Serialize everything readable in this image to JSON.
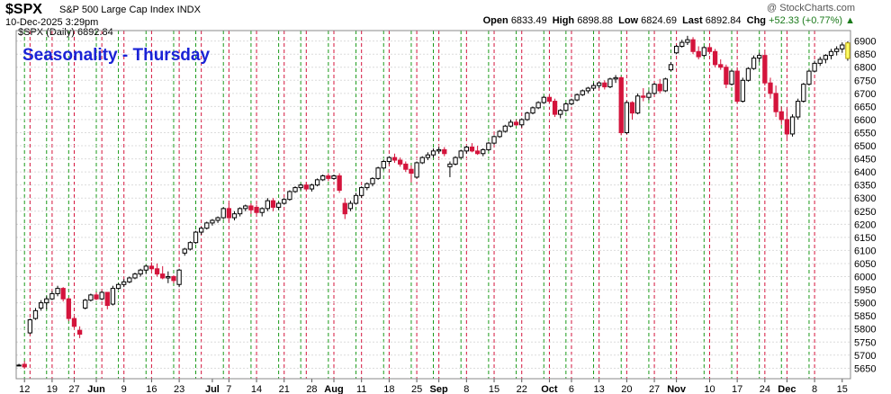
{
  "header": {
    "symbol": "$SPX",
    "name": "S&P 500 Large Cap Index INDX",
    "date": "10-Dec-2025 3:29pm",
    "brand": "@ StockCharts.com",
    "open_label": "Open",
    "open": "6833.49",
    "high_label": "High",
    "high": "6898.88",
    "low_label": "Low",
    "low": "6824.69",
    "last_label": "Last",
    "last": "6892.84",
    "chg_label": "Chg",
    "chg": "+52.33 (+0.77%)"
  },
  "colors": {
    "up": "#ffffff",
    "down": "#d4143c",
    "green_line": "#1a9a1a",
    "red_line": "#d4143c",
    "title": "#1a23d6",
    "highlight": "#ffff66"
  },
  "chart_data": {
    "type": "candlestick",
    "title": "Seasonality - Thursday",
    "inline_label": "$SPX (Daily) 6892.84",
    "y_axis": {
      "side": "right",
      "ylim": [
        5610,
        6940
      ],
      "ticks": [
        5650,
        5700,
        5750,
        5800,
        5850,
        5900,
        5950,
        6000,
        6050,
        6100,
        6150,
        6200,
        6250,
        6300,
        6350,
        6400,
        6450,
        6500,
        6550,
        6600,
        6650,
        6700,
        6750,
        6800,
        6850,
        6900
      ]
    },
    "x_labels": [
      {
        "label": "12",
        "idx": 1
      },
      {
        "label": "19",
        "idx": 6
      },
      {
        "label": "27",
        "idx": 10
      },
      {
        "label": "Jun",
        "idx": 14,
        "bold": true
      },
      {
        "label": "9",
        "idx": 19
      },
      {
        "label": "16",
        "idx": 24
      },
      {
        "label": "23",
        "idx": 29
      },
      {
        "label": "Jul",
        "idx": 35,
        "bold": true
      },
      {
        "label": "7",
        "idx": 38
      },
      {
        "label": "14",
        "idx": 43
      },
      {
        "label": "21",
        "idx": 48
      },
      {
        "label": "28",
        "idx": 53
      },
      {
        "label": "Aug",
        "idx": 57,
        "bold": true
      },
      {
        "label": "11",
        "idx": 62
      },
      {
        "label": "18",
        "idx": 67
      },
      {
        "label": "25",
        "idx": 72
      },
      {
        "label": "Sep",
        "idx": 76,
        "bold": true
      },
      {
        "label": "8",
        "idx": 81
      },
      {
        "label": "15",
        "idx": 86
      },
      {
        "label": "22",
        "idx": 91
      },
      {
        "label": "Oct",
        "idx": 96,
        "bold": true
      },
      {
        "label": "6",
        "idx": 100
      },
      {
        "label": "13",
        "idx": 105
      },
      {
        "label": "20",
        "idx": 110
      },
      {
        "label": "27",
        "idx": 115
      },
      {
        "label": "Nov",
        "idx": 119,
        "bold": true
      },
      {
        "label": "10",
        "idx": 125
      },
      {
        "label": "17",
        "idx": 130
      },
      {
        "label": "24",
        "idx": 135
      },
      {
        "label": "Dec",
        "idx": 139,
        "bold": true
      },
      {
        "label": "8",
        "idx": 144
      },
      {
        "label": "15",
        "idx": 149
      }
    ],
    "x_count": 151,
    "green_lines": [
      1,
      5,
      9,
      14,
      18,
      23,
      28,
      32,
      37,
      42,
      47,
      51,
      56,
      61,
      66,
      71,
      75,
      80,
      85,
      90,
      95,
      99,
      104,
      109,
      114,
      118,
      124,
      129,
      134,
      138,
      143
    ],
    "red_lines": [
      2,
      6,
      10,
      15,
      19,
      24,
      29,
      33,
      38,
      43,
      48,
      52,
      57,
      62,
      67,
      72,
      76,
      81,
      86,
      91,
      96,
      100,
      105,
      110,
      115,
      119,
      125,
      130,
      135,
      139,
      144
    ],
    "candles": [
      [
        0,
        5662,
        5667,
        5658,
        5662
      ],
      [
        1,
        5665,
        5677,
        5648,
        5655
      ],
      [
        2,
        5785,
        5840,
        5780,
        5835
      ],
      [
        3,
        5840,
        5880,
        5835,
        5870
      ],
      [
        4,
        5880,
        5910,
        5870,
        5900
      ],
      [
        5,
        5900,
        5925,
        5875,
        5915
      ],
      [
        6,
        5915,
        5945,
        5910,
        5935
      ],
      [
        7,
        5935,
        5965,
        5925,
        5955
      ],
      [
        8,
        5955,
        5960,
        5905,
        5915
      ],
      [
        9,
        5915,
        5920,
        5830,
        5840
      ],
      [
        10,
        5840,
        5850,
        5800,
        5810
      ],
      [
        11,
        5795,
        5810,
        5765,
        5780
      ],
      [
        12,
        5880,
        5915,
        5875,
        5910
      ],
      [
        13,
        5910,
        5935,
        5905,
        5930
      ],
      [
        14,
        5930,
        5940,
        5910,
        5915
      ],
      [
        15,
        5915,
        5945,
        5910,
        5940
      ],
      [
        16,
        5940,
        5940,
        5875,
        5890
      ],
      [
        17,
        5895,
        5965,
        5890,
        5955
      ],
      [
        18,
        5955,
        5975,
        5950,
        5970
      ],
      [
        19,
        5970,
        5990,
        5960,
        5980
      ],
      [
        20,
        5980,
        6000,
        5975,
        5995
      ],
      [
        21,
        5995,
        6015,
        5990,
        6010
      ],
      [
        22,
        6010,
        6030,
        6000,
        6025
      ],
      [
        23,
        6025,
        6045,
        6010,
        6040
      ],
      [
        24,
        6040,
        6055,
        6025,
        6030
      ],
      [
        25,
        6030,
        6050,
        6000,
        6010
      ],
      [
        26,
        6010,
        6040,
        5990,
        5995
      ],
      [
        27,
        5995,
        6020,
        5975,
        6000
      ],
      [
        28,
        6000,
        6005,
        5975,
        5985
      ],
      [
        29,
        5970,
        6030,
        5960,
        6025
      ],
      [
        30,
        6090,
        6110,
        6080,
        6105
      ],
      [
        31,
        6105,
        6135,
        6100,
        6130
      ],
      [
        32,
        6130,
        6175,
        6125,
        6170
      ],
      [
        33,
        6170,
        6190,
        6160,
        6185
      ],
      [
        34,
        6185,
        6210,
        6180,
        6205
      ],
      [
        35,
        6205,
        6220,
        6195,
        6215
      ],
      [
        36,
        6215,
        6230,
        6205,
        6225
      ],
      [
        37,
        6225,
        6265,
        6220,
        6260
      ],
      [
        38,
        6260,
        6280,
        6210,
        6225
      ],
      [
        39,
        6225,
        6250,
        6215,
        6240
      ],
      [
        40,
        6240,
        6265,
        6230,
        6260
      ],
      [
        41,
        6260,
        6275,
        6250,
        6270
      ],
      [
        42,
        6270,
        6280,
        6240,
        6255
      ],
      [
        43,
        6265,
        6275,
        6240,
        6245
      ],
      [
        44,
        6245,
        6265,
        6230,
        6260
      ],
      [
        45,
        6260,
        6300,
        6250,
        6290
      ],
      [
        46,
        6290,
        6300,
        6250,
        6265
      ],
      [
        47,
        6265,
        6285,
        6255,
        6280
      ],
      [
        48,
        6280,
        6300,
        6275,
        6295
      ],
      [
        49,
        6295,
        6330,
        6290,
        6325
      ],
      [
        50,
        6325,
        6345,
        6320,
        6340
      ],
      [
        51,
        6340,
        6355,
        6330,
        6350
      ],
      [
        52,
        6350,
        6360,
        6330,
        6335
      ],
      [
        53,
        6335,
        6355,
        6325,
        6350
      ],
      [
        54,
        6350,
        6375,
        6345,
        6370
      ],
      [
        55,
        6370,
        6390,
        6365,
        6385
      ],
      [
        56,
        6385,
        6395,
        6365,
        6375
      ],
      [
        57,
        6375,
        6390,
        6370,
        6385
      ],
      [
        58,
        6385,
        6395,
        6320,
        6330
      ],
      [
        59,
        6280,
        6300,
        6220,
        6240
      ],
      [
        60,
        6260,
        6290,
        6250,
        6280
      ],
      [
        61,
        6280,
        6320,
        6275,
        6310
      ],
      [
        62,
        6310,
        6345,
        6300,
        6340
      ],
      [
        63,
        6340,
        6360,
        6330,
        6355
      ],
      [
        64,
        6355,
        6380,
        6345,
        6375
      ],
      [
        65,
        6375,
        6420,
        6370,
        6415
      ],
      [
        66,
        6415,
        6445,
        6410,
        6440
      ],
      [
        67,
        6440,
        6460,
        6430,
        6455
      ],
      [
        68,
        6455,
        6470,
        6435,
        6445
      ],
      [
        69,
        6445,
        6455,
        6420,
        6430
      ],
      [
        70,
        6430,
        6440,
        6400,
        6410
      ],
      [
        71,
        6410,
        6425,
        6360,
        6395
      ],
      [
        72,
        6380,
        6440,
        6375,
        6435
      ],
      [
        73,
        6435,
        6460,
        6430,
        6455
      ],
      [
        74,
        6455,
        6475,
        6445,
        6465
      ],
      [
        75,
        6465,
        6490,
        6455,
        6480
      ],
      [
        76,
        6480,
        6495,
        6470,
        6485
      ],
      [
        77,
        6485,
        6495,
        6460,
        6470
      ],
      [
        78,
        6420,
        6440,
        6380,
        6430
      ],
      [
        79,
        6430,
        6460,
        6425,
        6455
      ],
      [
        80,
        6455,
        6485,
        6450,
        6480
      ],
      [
        81,
        6480,
        6500,
        6470,
        6495
      ],
      [
        82,
        6495,
        6510,
        6475,
        6480
      ],
      [
        83,
        6480,
        6500,
        6465,
        6470
      ],
      [
        84,
        6470,
        6490,
        6460,
        6485
      ],
      [
        85,
        6485,
        6515,
        6480,
        6510
      ],
      [
        86,
        6510,
        6540,
        6505,
        6535
      ],
      [
        87,
        6535,
        6560,
        6530,
        6555
      ],
      [
        88,
        6555,
        6580,
        6550,
        6575
      ],
      [
        89,
        6575,
        6600,
        6570,
        6590
      ],
      [
        90,
        6590,
        6600,
        6575,
        6580
      ],
      [
        91,
        6580,
        6605,
        6570,
        6600
      ],
      [
        92,
        6600,
        6630,
        6595,
        6625
      ],
      [
        93,
        6625,
        6650,
        6620,
        6645
      ],
      [
        94,
        6645,
        6670,
        6640,
        6665
      ],
      [
        95,
        6665,
        6690,
        6660,
        6685
      ],
      [
        96,
        6685,
        6695,
        6660,
        6670
      ],
      [
        97,
        6670,
        6680,
        6610,
        6620
      ],
      [
        98,
        6620,
        6640,
        6605,
        6635
      ],
      [
        99,
        6635,
        6665,
        6630,
        6660
      ],
      [
        100,
        6660,
        6680,
        6655,
        6675
      ],
      [
        101,
        6675,
        6700,
        6670,
        6695
      ],
      [
        102,
        6695,
        6715,
        6690,
        6710
      ],
      [
        103,
        6710,
        6725,
        6700,
        6720
      ],
      [
        104,
        6720,
        6740,
        6710,
        6730
      ],
      [
        105,
        6730,
        6745,
        6720,
        6740
      ],
      [
        106,
        6740,
        6750,
        6715,
        6725
      ],
      [
        107,
        6725,
        6760,
        6720,
        6755
      ],
      [
        108,
        6755,
        6770,
        6740,
        6760
      ],
      [
        109,
        6760,
        6765,
        6540,
        6550
      ],
      [
        110,
        6550,
        6670,
        6545,
        6665
      ],
      [
        111,
        6665,
        6670,
        6600,
        6625
      ],
      [
        112,
        6625,
        6700,
        6620,
        6690
      ],
      [
        113,
        6690,
        6720,
        6670,
        6685
      ],
      [
        114,
        6685,
        6710,
        6675,
        6700
      ],
      [
        115,
        6700,
        6740,
        6695,
        6735
      ],
      [
        116,
        6735,
        6755,
        6700,
        6710
      ],
      [
        117,
        6710,
        6760,
        6705,
        6755
      ],
      [
        118,
        6790,
        6820,
        6785,
        6810
      ],
      [
        119,
        6855,
        6885,
        6850,
        6880
      ],
      [
        120,
        6880,
        6905,
        6875,
        6895
      ],
      [
        121,
        6895,
        6920,
        6885,
        6905
      ],
      [
        122,
        6905,
        6915,
        6850,
        6860
      ],
      [
        123,
        6860,
        6880,
        6830,
        6840
      ],
      [
        124,
        6845,
        6880,
        6840,
        6875
      ],
      [
        125,
        6875,
        6890,
        6850,
        6860
      ],
      [
        126,
        6860,
        6870,
        6800,
        6810
      ],
      [
        127,
        6810,
        6830,
        6790,
        6800
      ],
      [
        128,
        6800,
        6810,
        6720,
        6735
      ],
      [
        129,
        6735,
        6790,
        6730,
        6785
      ],
      [
        130,
        6785,
        6800,
        6660,
        6670
      ],
      [
        131,
        6670,
        6760,
        6665,
        6750
      ],
      [
        132,
        6750,
        6800,
        6745,
        6795
      ],
      [
        133,
        6795,
        6845,
        6790,
        6835
      ],
      [
        134,
        6835,
        6855,
        6820,
        6845
      ],
      [
        135,
        6845,
        6855,
        6730,
        6740
      ],
      [
        136,
        6740,
        6760,
        6680,
        6700
      ],
      [
        137,
        6700,
        6730,
        6610,
        6630
      ],
      [
        138,
        6630,
        6650,
        6580,
        6600
      ],
      [
        139,
        6600,
        6640,
        6530,
        6545
      ],
      [
        140,
        6545,
        6620,
        6535,
        6610
      ],
      [
        141,
        6610,
        6680,
        6600,
        6670
      ],
      [
        142,
        6670,
        6740,
        6665,
        6735
      ],
      [
        143,
        6735,
        6790,
        6730,
        6785
      ],
      [
        144,
        6785,
        6825,
        6780,
        6815
      ],
      [
        145,
        6815,
        6840,
        6805,
        6830
      ],
      [
        146,
        6830,
        6850,
        6815,
        6845
      ],
      [
        147,
        6845,
        6870,
        6830,
        6860
      ],
      [
        148,
        6860,
        6880,
        6845,
        6870
      ],
      [
        149,
        6870,
        6895,
        6855,
        6885
      ],
      [
        150,
        6833.49,
        6898.88,
        6824.69,
        6892.84
      ]
    ],
    "highlight_last": true,
    "grid": true
  }
}
